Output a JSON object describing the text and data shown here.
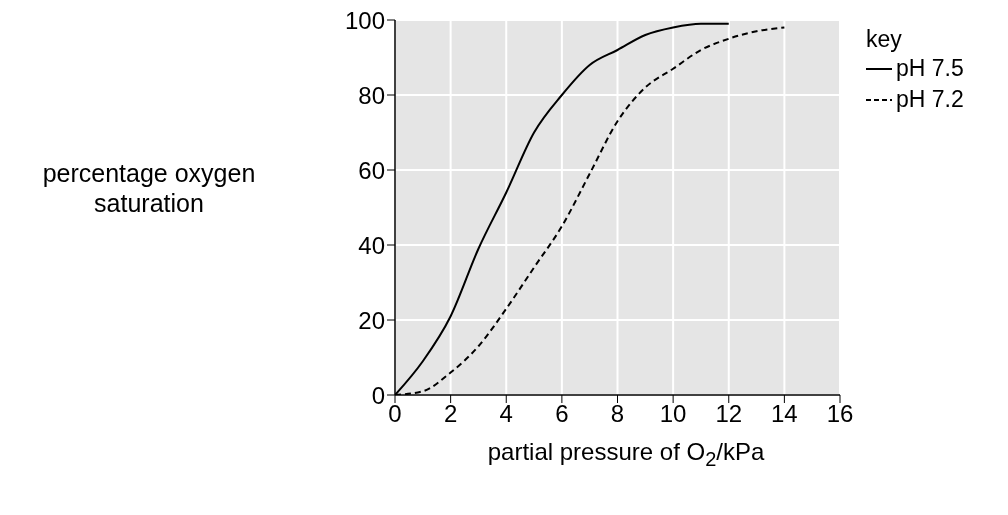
{
  "chart_data": {
    "type": "line",
    "xlabel": "partial pressure of O$_{2}$/kPa",
    "ylabel": "percentage oxygen saturation",
    "legend_title": "key",
    "xlim": [
      0,
      16
    ],
    "xticks": [
      0,
      2,
      4,
      6,
      8,
      10,
      12,
      14,
      16
    ],
    "ylim": [
      0,
      100
    ],
    "yticks": [
      0,
      20,
      40,
      60,
      80,
      100
    ],
    "grid": true,
    "legend": "top right",
    "marker": "none",
    "series": [
      {
        "name": "pH 7.5",
        "color": "#000000",
        "line_style": "solid",
        "x": [
          0,
          1,
          2,
          3,
          4,
          5,
          6,
          7,
          8,
          9,
          10,
          11,
          12
        ],
        "values": [
          0,
          9,
          21,
          39,
          54,
          70,
          80,
          88,
          92,
          96,
          98,
          99,
          99
        ]
      },
      {
        "name": "pH 7.2",
        "color": "#000000",
        "line_style": "dashed",
        "x": [
          0,
          1,
          2,
          3,
          4,
          5,
          6,
          7,
          8,
          9,
          10,
          11,
          12,
          13,
          14
        ],
        "values": [
          0,
          1,
          6,
          13,
          23,
          34,
          45,
          59,
          73,
          82,
          87,
          92,
          95,
          97,
          98
        ]
      }
    ]
  }
}
